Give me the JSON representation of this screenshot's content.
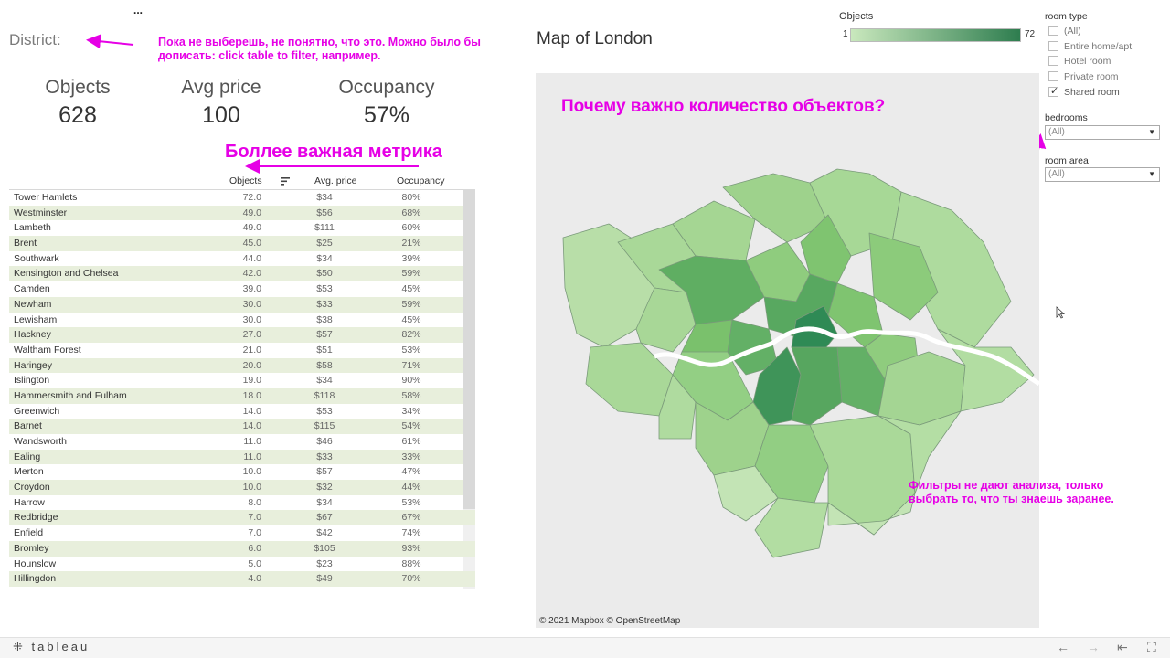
{
  "header": {
    "district_label": "District:",
    "menu_dots": "..."
  },
  "annotations": {
    "district_note": "Пока не выберешь, не понятно, что это. Можно было бы дописать: click table to filter, например.",
    "metric_note": "Боллее важная метрика",
    "map_note": "Почему важно количество объектов?",
    "filter_note": "Фильтры не дают анализа, только выбрать то, что ты знаешь заранее."
  },
  "kpis": [
    {
      "title": "Objects",
      "value": "628"
    },
    {
      "title": "Avg price",
      "value": "100"
    },
    {
      "title": "Occupancy",
      "value": "57%"
    }
  ],
  "table": {
    "columns": [
      "Objects",
      "Avg. price",
      "Occupancy"
    ],
    "rows": [
      [
        "Tower Hamlets",
        "72.0",
        "$34",
        "80%"
      ],
      [
        "Westminster",
        "49.0",
        "$56",
        "68%"
      ],
      [
        "Lambeth",
        "49.0",
        "$111",
        "60%"
      ],
      [
        "Brent",
        "45.0",
        "$25",
        "21%"
      ],
      [
        "Southwark",
        "44.0",
        "$34",
        "39%"
      ],
      [
        "Kensington and Chelsea",
        "42.0",
        "$50",
        "59%"
      ],
      [
        "Camden",
        "39.0",
        "$53",
        "45%"
      ],
      [
        "Newham",
        "30.0",
        "$33",
        "59%"
      ],
      [
        "Lewisham",
        "30.0",
        "$38",
        "45%"
      ],
      [
        "Hackney",
        "27.0",
        "$57",
        "82%"
      ],
      [
        "Waltham Forest",
        "21.0",
        "$51",
        "53%"
      ],
      [
        "Haringey",
        "20.0",
        "$58",
        "71%"
      ],
      [
        "Islington",
        "19.0",
        "$34",
        "90%"
      ],
      [
        "Hammersmith and Fulham",
        "18.0",
        "$118",
        "58%"
      ],
      [
        "Greenwich",
        "14.0",
        "$53",
        "34%"
      ],
      [
        "Barnet",
        "14.0",
        "$115",
        "54%"
      ],
      [
        "Wandsworth",
        "11.0",
        "$46",
        "61%"
      ],
      [
        "Ealing",
        "11.0",
        "$33",
        "33%"
      ],
      [
        "Merton",
        "10.0",
        "$57",
        "47%"
      ],
      [
        "Croydon",
        "10.0",
        "$32",
        "44%"
      ],
      [
        "Harrow",
        "8.0",
        "$34",
        "53%"
      ],
      [
        "Redbridge",
        "7.0",
        "$67",
        "67%"
      ],
      [
        "Enfield",
        "7.0",
        "$42",
        "74%"
      ],
      [
        "Bromley",
        "6.0",
        "$105",
        "93%"
      ],
      [
        "Hounslow",
        "5.0",
        "$23",
        "88%"
      ],
      [
        "Hillingdon",
        "4.0",
        "$49",
        "70%"
      ]
    ]
  },
  "map": {
    "title": "Map of London",
    "credit": "© 2021 Mapbox © OpenStreetMap"
  },
  "legend": {
    "title": "Objects",
    "min": "1",
    "max": "72",
    "color_low": "#c9e8bd",
    "color_high": "#2e7d4f"
  },
  "filters": {
    "room_type": {
      "title": "room type",
      "options": [
        {
          "label": "(All)",
          "checked": false
        },
        {
          "label": "Entire home/apt",
          "checked": false
        },
        {
          "label": "Hotel room",
          "checked": false
        },
        {
          "label": "Private room",
          "checked": false
        },
        {
          "label": "Shared room",
          "checked": true
        }
      ]
    },
    "bedrooms": {
      "title": "bedrooms",
      "value": "(All)"
    },
    "room_area": {
      "title": "room area",
      "value": "(All)"
    }
  },
  "footer": {
    "logo": "tableau"
  },
  "colors": {
    "annotation": "#e600e6",
    "row_stripe": "#e8efdc"
  }
}
